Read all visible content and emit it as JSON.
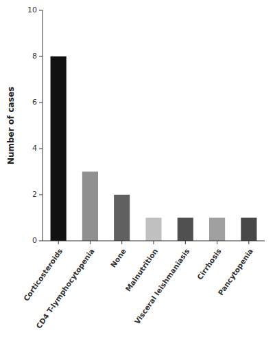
{
  "chart_data": {
    "type": "bar",
    "categories": [
      "Corticosteroids",
      "CD4 T-lymphocytopenia",
      "None",
      "Malnutrition",
      "Visceral leishmaniasis",
      "Cirrhosis",
      "Pancytopenia"
    ],
    "values": [
      8,
      3,
      2,
      1,
      1,
      1,
      1
    ],
    "colors": [
      "#111111",
      "#909090",
      "#606060",
      "#c0c0c0",
      "#505050",
      "#a0a0a0",
      "#484848"
    ],
    "ylabel": "Number of cases",
    "ylim": [
      0,
      10
    ],
    "yticks": [
      0,
      2,
      4,
      6,
      8,
      10
    ],
    "grid": false
  }
}
